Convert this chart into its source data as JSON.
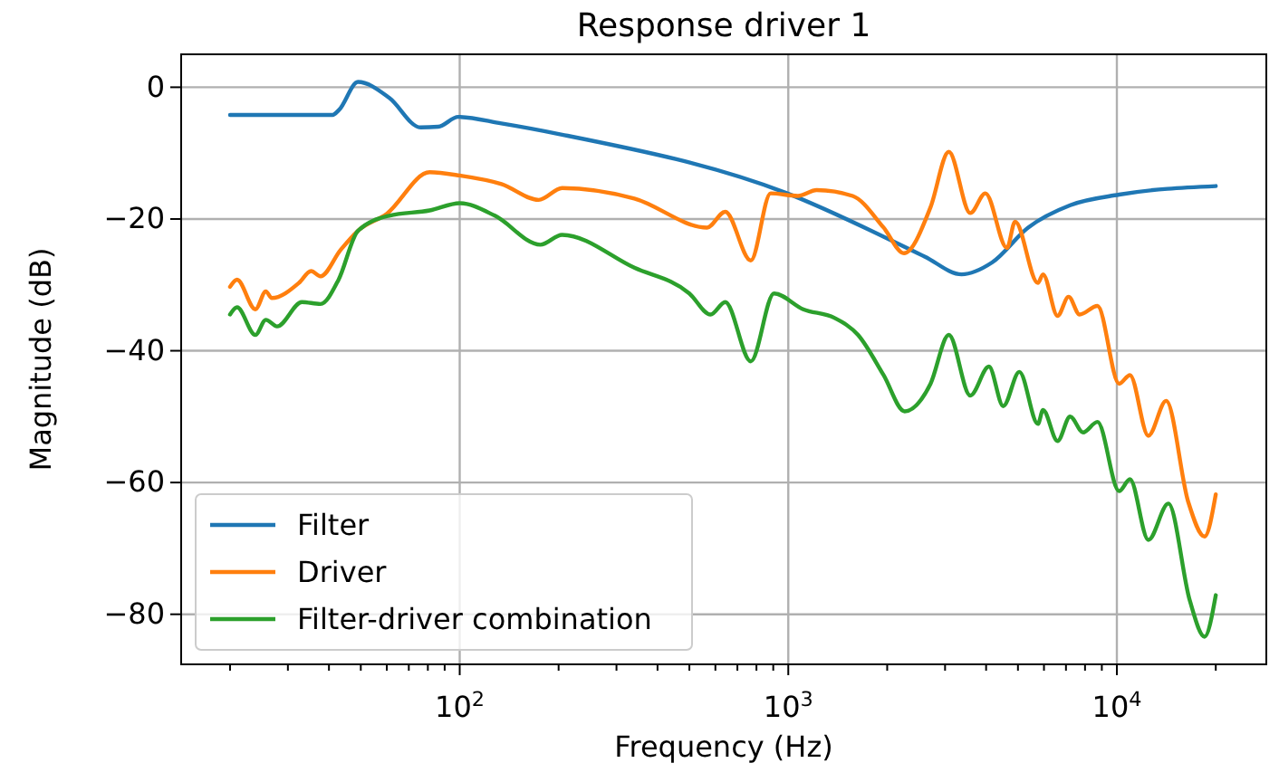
{
  "chart_data": {
    "type": "line",
    "title": "Response driver 1",
    "xlabel": "Frequency (Hz)",
    "ylabel": "Magnitude (dB)",
    "log": "x",
    "grid": true,
    "legend": "bottom left",
    "line_style": "solid",
    "marker": "none",
    "xlim": [
      14.2,
      28500
    ],
    "ylim": [
      -87.6,
      5
    ],
    "xticks": [
      {
        "value": 20,
        "label": null
      },
      {
        "value": 30,
        "label": null
      },
      {
        "value": 40,
        "label": null
      },
      {
        "value": 50,
        "label": null
      },
      {
        "value": 60,
        "label": null
      },
      {
        "value": 70,
        "label": null
      },
      {
        "value": 80,
        "label": null
      },
      {
        "value": 90,
        "label": null
      },
      {
        "value": 100,
        "label": "10$^{2}$"
      },
      {
        "value": 200,
        "label": null
      },
      {
        "value": 300,
        "label": null
      },
      {
        "value": 400,
        "label": null
      },
      {
        "value": 500,
        "label": null
      },
      {
        "value": 600,
        "label": null
      },
      {
        "value": 700,
        "label": null
      },
      {
        "value": 800,
        "label": null
      },
      {
        "value": 900,
        "label": null
      },
      {
        "value": 1000,
        "label": "10$^{3}$"
      },
      {
        "value": 2000,
        "label": null
      },
      {
        "value": 3000,
        "label": null
      },
      {
        "value": 4000,
        "label": null
      },
      {
        "value": 5000,
        "label": null
      },
      {
        "value": 6000,
        "label": null
      },
      {
        "value": 7000,
        "label": null
      },
      {
        "value": 8000,
        "label": null
      },
      {
        "value": 9000,
        "label": null
      },
      {
        "value": 10000,
        "label": "10$^{4}$"
      },
      {
        "value": 20000,
        "label": null
      }
    ],
    "yticks": [
      {
        "value": 0,
        "label": "0"
      },
      {
        "value": -20,
        "label": "−20"
      },
      {
        "value": -40,
        "label": "−40"
      },
      {
        "value": -60,
        "label": "−60"
      },
      {
        "value": -80,
        "label": "−80"
      }
    ],
    "series": [
      {
        "name": "Filter",
        "color": "#1f77b4",
        "x": [
          20,
          41,
          43,
          49,
          61,
          76,
          86,
          99,
          134,
          205,
          980,
          2600,
          3370,
          4170,
          5370,
          7210,
          10160,
          20000
        ],
        "values": [
          -4.2,
          -4.2,
          -3.4,
          0.8,
          -1.6,
          -6.1,
          -6,
          -4.5,
          -5.5,
          -7.2,
          -16,
          -25.7,
          -28.4,
          -26.6,
          -21.3,
          -17.9,
          -16.3,
          -15
        ]
      },
      {
        "name": "Driver",
        "color": "#ff7f0e",
        "x": [
          20,
          21,
          23.9,
          25.7,
          26.8,
          32.4,
          35.3,
          37.7,
          43.4,
          49,
          60,
          81,
          100,
          134,
          174,
          205,
          340,
          566,
          643,
          769,
          884,
          1070,
          1220,
          1570,
          1950,
          2250,
          2710,
          3080,
          3580,
          3980,
          4630,
          4900,
          5750,
          5960,
          6600,
          7130,
          7700,
          8730,
          10160,
          10960,
          12470,
          14130,
          16480,
          18490,
          20000
        ],
        "values": [
          -30.3,
          -29.2,
          -33.7,
          -31,
          -32,
          -29.7,
          -27.9,
          -28.7,
          -24.7,
          -21.8,
          -19.2,
          -12.9,
          -13.4,
          -14.7,
          -17.1,
          -15.3,
          -16.9,
          -21.3,
          -18.9,
          -26.3,
          -16.1,
          -16.5,
          -15.6,
          -16.5,
          -21.3,
          -25.2,
          -18.2,
          -9.8,
          -19.1,
          -16.1,
          -24.4,
          -20.4,
          -29.7,
          -28.4,
          -34.7,
          -31.8,
          -34.5,
          -33.2,
          -45,
          -43.7,
          -52.9,
          -47.6,
          -62.9,
          -68.2,
          -61.8
        ]
      },
      {
        "name": "Filter-driver combination",
        "color": "#2ca02c",
        "x": [
          20,
          21,
          23.9,
          25.7,
          27.8,
          33.1,
          37.7,
          42.8,
          49,
          61,
          81,
          100,
          128,
          176,
          205,
          340,
          500,
          580,
          643,
          769,
          905,
          1110,
          1380,
          1630,
          1950,
          2260,
          2710,
          3080,
          3580,
          4080,
          4510,
          5050,
          5750,
          5960,
          6600,
          7210,
          7890,
          8730,
          10160,
          10960,
          12470,
          14350,
          16670,
          18490,
          20000
        ],
        "values": [
          -34.5,
          -33.4,
          -37.6,
          -35.3,
          -36.3,
          -32.6,
          -32.9,
          -29.2,
          -21.8,
          -19.5,
          -18.7,
          -17.6,
          -19.5,
          -23.9,
          -22.4,
          -27.4,
          -31.3,
          -34.5,
          -32.6,
          -41.6,
          -31.3,
          -33.7,
          -35,
          -37.6,
          -43.7,
          -49.2,
          -45,
          -37.6,
          -46.8,
          -42.4,
          -48.4,
          -43.2,
          -51.1,
          -49,
          -53.7,
          -50,
          -52.4,
          -50.8,
          -61.3,
          -59.5,
          -68.7,
          -63.2,
          -77.9,
          -83.4,
          -77.1
        ]
      }
    ]
  }
}
